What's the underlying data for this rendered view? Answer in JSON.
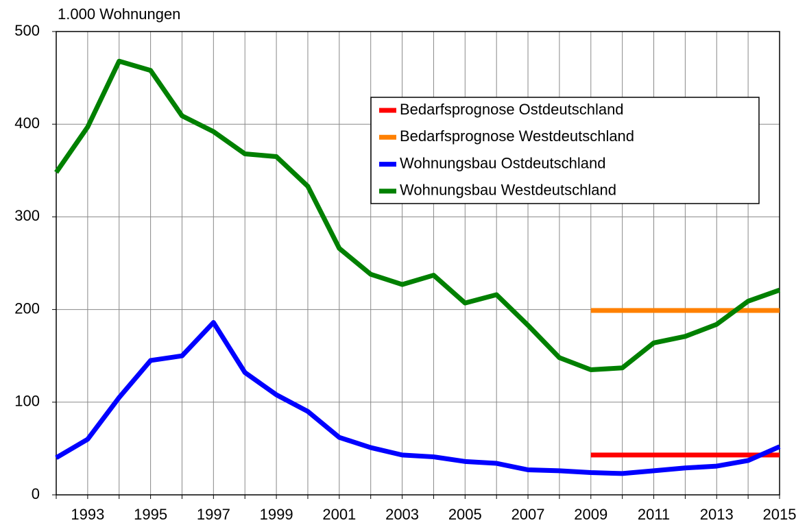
{
  "chart_data": {
    "type": "line",
    "y_axis_label": "1.000 Wohnungen",
    "categories": [
      null,
      "1993",
      null,
      "1995",
      null,
      "1997",
      null,
      "1999",
      null,
      "2001",
      null,
      "2003",
      null,
      "2005",
      null,
      "2007",
      null,
      "2009",
      null,
      "2011",
      null,
      "2013",
      null,
      "2015"
    ],
    "series": [
      {
        "name": "Bedarfsprognose Ostdeutschland",
        "color": "#ff0000",
        "values": [
          null,
          null,
          null,
          null,
          null,
          null,
          null,
          null,
          null,
          null,
          null,
          null,
          null,
          null,
          null,
          null,
          null,
          43,
          43,
          43,
          43,
          43,
          43,
          43
        ]
      },
      {
        "name": "Bedarfsprognose Westdeutschland",
        "color": "#ff8000",
        "values": [
          null,
          null,
          null,
          null,
          null,
          null,
          null,
          null,
          null,
          null,
          null,
          null,
          null,
          null,
          null,
          null,
          null,
          199,
          199,
          199,
          199,
          199,
          199,
          199
        ]
      },
      {
        "name": "Wohnungsbau Ostdeutschland",
        "color": "#0000ff",
        "values": [
          40,
          60,
          105,
          145,
          150,
          186,
          132,
          108,
          90,
          62,
          51,
          43,
          41,
          36,
          34,
          27,
          26,
          24,
          23,
          26,
          29,
          31,
          37,
          52
        ]
      },
      {
        "name": "Wohnungsbau Westdeutschland",
        "color": "#008000",
        "values": [
          348,
          397,
          468,
          458,
          409,
          392,
          368,
          365,
          333,
          266,
          238,
          227,
          237,
          207,
          216,
          183,
          148,
          135,
          137,
          164,
          171,
          184,
          209,
          221
        ]
      }
    ],
    "ylim": [
      0,
      500
    ],
    "yticks": [
      0,
      100,
      200,
      300,
      400,
      500
    ],
    "grid": true,
    "legend": "upper right"
  }
}
